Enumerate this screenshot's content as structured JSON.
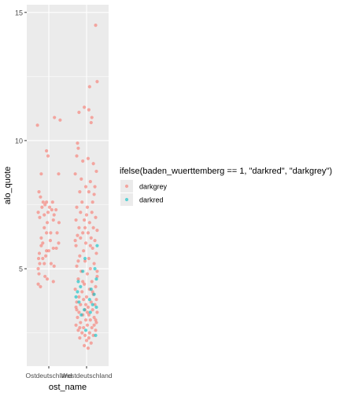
{
  "chart_data": {
    "type": "scatter",
    "title": "",
    "xlabel": "ost_name",
    "ylabel": "alo_quote",
    "categories": [
      "Ostdeutschland",
      "Westdeutschland"
    ],
    "x_tick_labels": [
      "Ostdeutschland",
      "Westdeutschland"
    ],
    "y_ticks": [
      5,
      10,
      15
    ],
    "y_tick_labels": [
      "5",
      "10",
      "15"
    ],
    "ylim": [
      1.2,
      15.3
    ],
    "jitter": true,
    "grid": true,
    "legend": {
      "title": "ifelse(baden_wuerttemberg == 1, \"darkred\", \"darkgrey\")",
      "placement": "right",
      "entries": [
        {
          "label": "darkgrey",
          "color": "#F8766D"
        },
        {
          "label": "darkred",
          "color": "#00BFC4"
        }
      ]
    },
    "colors": {
      "panel_bg": "#EBEBEB",
      "grid_major": "#FFFFFF",
      "darkgrey": "#F8766D",
      "darkred": "#00BFC4",
      "tick_text": "#4D4D4D",
      "axis_title": "#000000"
    },
    "series": [
      {
        "name": "darkgrey",
        "points": [
          [
            "Ostdeutschland",
            -0.3,
            10.6
          ],
          [
            "Ostdeutschland",
            -0.06,
            9.6
          ],
          [
            "Ostdeutschland",
            -0.02,
            9.4
          ],
          [
            "Ostdeutschland",
            0.3,
            10.8
          ],
          [
            "Ostdeutschland",
            0.15,
            10.9
          ],
          [
            "Ostdeutschland",
            0.26,
            8.7
          ],
          [
            "Ostdeutschland",
            -0.2,
            8.7
          ],
          [
            "Ostdeutschland",
            -0.26,
            8.0
          ],
          [
            "Ostdeutschland",
            -0.22,
            7.8
          ],
          [
            "Ostdeutschland",
            -0.15,
            7.6
          ],
          [
            "Ostdeutschland",
            -0.18,
            7.4
          ],
          [
            "Ostdeutschland",
            -0.28,
            7.2
          ],
          [
            "Ostdeutschland",
            -0.24,
            7.0
          ],
          [
            "Ostdeutschland",
            -0.1,
            7.5
          ],
          [
            "Ostdeutschland",
            -0.06,
            7.6
          ],
          [
            "Ostdeutschland",
            0.02,
            7.4
          ],
          [
            "Ostdeutschland",
            -0.02,
            7.2
          ],
          [
            "Ostdeutschland",
            -0.12,
            7.1
          ],
          [
            "Ostdeutschland",
            0.08,
            7.3
          ],
          [
            "Ostdeutschland",
            0.14,
            7.1
          ],
          [
            "Ostdeutschland",
            0.19,
            7.3
          ],
          [
            "Ostdeutschland",
            0.1,
            7.6
          ],
          [
            "Ostdeutschland",
            0.12,
            6.9
          ],
          [
            "Ostdeutschland",
            -0.04,
            6.8
          ],
          [
            "Ostdeutschland",
            -0.12,
            6.6
          ],
          [
            "Ostdeutschland",
            -0.06,
            6.4
          ],
          [
            "Ostdeutschland",
            0.05,
            6.4
          ],
          [
            "Ostdeutschland",
            0.22,
            6.4
          ],
          [
            "Ostdeutschland",
            0.27,
            6.8
          ],
          [
            "Ostdeutschland",
            -0.2,
            6.2
          ],
          [
            "Ostdeutschland",
            -0.16,
            6.0
          ],
          [
            "Ostdeutschland",
            -0.2,
            5.9
          ],
          [
            "Ostdeutschland",
            0.04,
            6.1
          ],
          [
            "Ostdeutschland",
            0.26,
            6.0
          ],
          [
            "Ostdeutschland",
            -0.25,
            5.6
          ],
          [
            "Ostdeutschland",
            -0.27,
            5.4
          ],
          [
            "Ostdeutschland",
            -0.16,
            5.4
          ],
          [
            "Ostdeutschland",
            -0.24,
            5.2
          ],
          [
            "Ostdeutschland",
            -0.28,
            5.0
          ],
          [
            "Ostdeutschland",
            -0.26,
            4.8
          ],
          [
            "Ostdeutschland",
            -0.06,
            5.7
          ],
          [
            "Ostdeutschland",
            -0.08,
            5.5
          ],
          [
            "Ostdeutschland",
            0.0,
            5.7
          ],
          [
            "Ostdeutschland",
            0.12,
            5.8
          ],
          [
            "Ostdeutschland",
            0.2,
            5.8
          ],
          [
            "Ostdeutschland",
            0.06,
            5.2
          ],
          [
            "Ostdeutschland",
            -0.12,
            5.2
          ],
          [
            "Ostdeutschland",
            0.14,
            5.1
          ],
          [
            "Ostdeutschland",
            -0.1,
            4.7
          ],
          [
            "Ostdeutschland",
            -0.04,
            4.6
          ],
          [
            "Ostdeutschland",
            -0.28,
            4.4
          ],
          [
            "Ostdeutschland",
            -0.22,
            4.3
          ],
          [
            "Ostdeutschland",
            0.12,
            4.5
          ],
          [
            "Westdeutschland",
            0.24,
            14.5
          ],
          [
            "Westdeutschland",
            0.28,
            12.3
          ],
          [
            "Westdeutschland",
            0.08,
            12.1
          ],
          [
            "Westdeutschland",
            -0.06,
            11.3
          ],
          [
            "Westdeutschland",
            0.06,
            11.2
          ],
          [
            "Westdeutschland",
            -0.2,
            11.1
          ],
          [
            "Westdeutschland",
            0.14,
            10.9
          ],
          [
            "Westdeutschland",
            0.12,
            10.7
          ],
          [
            "Westdeutschland",
            -0.24,
            9.9
          ],
          [
            "Westdeutschland",
            -0.22,
            9.7
          ],
          [
            "Westdeutschland",
            -0.26,
            9.4
          ],
          [
            "Westdeutschland",
            -0.1,
            9.2
          ],
          [
            "Westdeutschland",
            0.04,
            9.3
          ],
          [
            "Westdeutschland",
            0.18,
            9.1
          ],
          [
            "Westdeutschland",
            0.26,
            8.8
          ],
          [
            "Westdeutschland",
            -0.3,
            8.7
          ],
          [
            "Westdeutschland",
            0.1,
            8.4
          ],
          [
            "Westdeutschland",
            -0.02,
            8.2
          ],
          [
            "Westdeutschland",
            -0.18,
            8.0
          ],
          [
            "Westdeutschland",
            0.06,
            8.0
          ],
          [
            "Westdeutschland",
            0.2,
            7.9
          ],
          [
            "Westdeutschland",
            -0.12,
            7.6
          ],
          [
            "Westdeutschland",
            -0.26,
            7.4
          ],
          [
            "Westdeutschland",
            0.02,
            7.4
          ],
          [
            "Westdeutschland",
            -0.16,
            7.2
          ],
          [
            "Westdeutschland",
            0.14,
            7.2
          ],
          [
            "Westdeutschland",
            0.24,
            7.0
          ],
          [
            "Westdeutschland",
            -0.28,
            6.9
          ],
          [
            "Westdeutschland",
            -0.06,
            6.9
          ],
          [
            "Westdeutschland",
            0.08,
            6.8
          ],
          [
            "Westdeutschland",
            -0.2,
            6.6
          ],
          [
            "Westdeutschland",
            0.18,
            6.6
          ],
          [
            "Westdeutschland",
            0.28,
            6.5
          ],
          [
            "Westdeutschland",
            -0.1,
            6.4
          ],
          [
            "Westdeutschland",
            0.04,
            6.4
          ],
          [
            "Westdeutschland",
            -0.24,
            6.3
          ],
          [
            "Westdeutschland",
            -0.16,
            6.2
          ],
          [
            "Westdeutschland",
            0.12,
            6.2
          ],
          [
            "Westdeutschland",
            0.22,
            6.1
          ],
          [
            "Westdeutschland",
            -0.02,
            6.0
          ],
          [
            "Westdeutschland",
            -0.28,
            5.9
          ],
          [
            "Westdeutschland",
            0.16,
            5.8
          ],
          [
            "Westdeutschland",
            -0.08,
            5.7
          ],
          [
            "Westdeutschland",
            0.26,
            5.6
          ],
          [
            "Westdeutschland",
            -0.18,
            5.5
          ],
          [
            "Westdeutschland",
            0.06,
            5.4
          ],
          [
            "Westdeutschland",
            -0.04,
            5.3
          ],
          [
            "Westdeutschland",
            0.2,
            5.2
          ],
          [
            "Westdeutschland",
            -0.26,
            5.1
          ],
          [
            "Westdeutschland",
            0.1,
            5.0
          ],
          [
            "Westdeutschland",
            -0.14,
            4.9
          ],
          [
            "Westdeutschland",
            0.02,
            4.8
          ],
          [
            "Westdeutschland",
            0.28,
            4.7
          ],
          [
            "Westdeutschland",
            -0.22,
            4.6
          ],
          [
            "Westdeutschland",
            0.14,
            4.5
          ],
          [
            "Westdeutschland",
            -0.06,
            4.4
          ],
          [
            "Westdeutschland",
            0.24,
            4.3
          ],
          [
            "Westdeutschland",
            -0.3,
            4.2
          ],
          [
            "Westdeutschland",
            0.08,
            4.2
          ],
          [
            "Westdeutschland",
            -0.12,
            4.1
          ],
          [
            "Westdeutschland",
            0.18,
            4.0
          ],
          [
            "Westdeutschland",
            -0.2,
            3.9
          ],
          [
            "Westdeutschland",
            0.0,
            3.9
          ],
          [
            "Westdeutschland",
            0.26,
            3.8
          ],
          [
            "Westdeutschland",
            -0.08,
            3.8
          ],
          [
            "Westdeutschland",
            -0.26,
            3.7
          ],
          [
            "Westdeutschland",
            0.12,
            3.7
          ],
          [
            "Westdeutschland",
            -0.16,
            3.6
          ],
          [
            "Westdeutschland",
            0.22,
            3.6
          ],
          [
            "Westdeutschland",
            0.04,
            3.5
          ],
          [
            "Westdeutschland",
            -0.28,
            3.5
          ],
          [
            "Westdeutschland",
            -0.04,
            3.4
          ],
          [
            "Westdeutschland",
            0.16,
            3.4
          ],
          [
            "Westdeutschland",
            -0.2,
            3.3
          ],
          [
            "Westdeutschland",
            0.28,
            3.3
          ],
          [
            "Westdeutschland",
            0.06,
            3.2
          ],
          [
            "Westdeutschland",
            -0.1,
            3.2
          ],
          [
            "Westdeutschland",
            -0.24,
            3.1
          ],
          [
            "Westdeutschland",
            0.2,
            3.1
          ],
          [
            "Westdeutschland",
            -0.02,
            3.0
          ],
          [
            "Westdeutschland",
            0.1,
            3.0
          ],
          [
            "Westdeutschland",
            -0.16,
            2.9
          ],
          [
            "Westdeutschland",
            0.26,
            2.9
          ],
          [
            "Westdeutschland",
            -0.28,
            2.8
          ],
          [
            "Westdeutschland",
            0.02,
            2.8
          ],
          [
            "Westdeutschland",
            -0.08,
            2.7
          ],
          [
            "Westdeutschland",
            0.14,
            2.7
          ],
          [
            "Westdeutschland",
            -0.22,
            2.6
          ],
          [
            "Westdeutschland",
            0.24,
            2.6
          ],
          [
            "Westdeutschland",
            -0.12,
            2.5
          ],
          [
            "Westdeutschland",
            0.08,
            2.5
          ],
          [
            "Westdeutschland",
            -0.04,
            2.4
          ],
          [
            "Westdeutschland",
            0.18,
            2.4
          ],
          [
            "Westdeutschland",
            -0.18,
            2.3
          ],
          [
            "Westdeutschland",
            0.0,
            2.2
          ],
          [
            "Westdeutschland",
            0.12,
            2.1
          ],
          [
            "Westdeutschland",
            -0.06,
            2.0
          ],
          [
            "Westdeutschland",
            0.04,
            1.9
          ],
          [
            "Westdeutschland",
            -0.3,
            6.1
          ],
          [
            "Westdeutschland",
            0.0,
            7.1
          ],
          [
            "Westdeutschland",
            0.16,
            7.6
          ],
          [
            "Westdeutschland",
            -0.14,
            8.5
          ],
          [
            "Westdeutschland",
            0.22,
            8.2
          ],
          [
            "Westdeutschland",
            -0.04,
            6.6
          ],
          [
            "Westdeutschland",
            0.1,
            5.9
          ],
          [
            "Westdeutschland",
            -0.22,
            5.3
          ],
          [
            "Westdeutschland",
            0.28,
            4.9
          ],
          [
            "Westdeutschland",
            -0.1,
            4.5
          ],
          [
            "Westdeutschland",
            0.16,
            4.1
          ],
          [
            "Westdeutschland",
            -0.26,
            3.4
          ],
          [
            "Westdeutschland",
            0.02,
            3.3
          ],
          [
            "Westdeutschland",
            0.24,
            3.0
          ],
          [
            "Westdeutschland",
            -0.18,
            2.7
          ],
          [
            "Westdeutschland",
            0.06,
            2.3
          ],
          [
            "Westdeutschland",
            0.2,
            2.8
          ],
          [
            "Westdeutschland",
            -0.02,
            3.6
          ]
        ]
      },
      {
        "name": "darkred",
        "points": [
          [
            "Westdeutschland",
            0.28,
            5.9
          ],
          [
            "Westdeutschland",
            -0.04,
            5.4
          ],
          [
            "Westdeutschland",
            0.22,
            5.0
          ],
          [
            "Westdeutschland",
            -0.1,
            4.9
          ],
          [
            "Westdeutschland",
            0.26,
            4.6
          ],
          [
            "Westdeutschland",
            -0.16,
            4.3
          ],
          [
            "Westdeutschland",
            0.12,
            4.2
          ],
          [
            "Westdeutschland",
            -0.24,
            4.1
          ],
          [
            "Westdeutschland",
            0.2,
            4.0
          ],
          [
            "Westdeutschland",
            -0.28,
            3.9
          ],
          [
            "Westdeutschland",
            0.08,
            3.8
          ],
          [
            "Westdeutschland",
            -0.2,
            3.7
          ],
          [
            "Westdeutschland",
            0.16,
            3.6
          ],
          [
            "Westdeutschland",
            0.26,
            3.5
          ],
          [
            "Westdeutschland",
            -0.06,
            3.4
          ],
          [
            "Westdeutschland",
            0.1,
            3.3
          ],
          [
            "Westdeutschland",
            -0.14,
            3.2
          ],
          [
            "Westdeutschland",
            -0.02,
            2.6
          ],
          [
            "Westdeutschland",
            0.24,
            2.4
          ],
          [
            "Westdeutschland",
            -0.22,
            4.5
          ]
        ]
      }
    ]
  }
}
